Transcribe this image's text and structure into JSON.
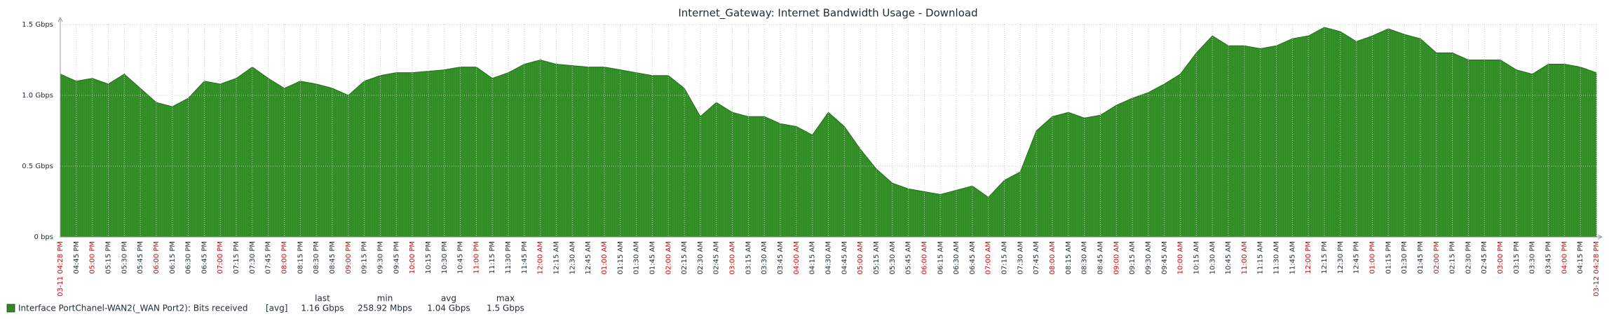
{
  "chart_data": {
    "type": "area",
    "title": "Internet_Gateway: Internet Bandwidth Usage - Download",
    "categories": [
      "03-11 04:28 PM",
      "04:45 PM",
      "05:00 PM",
      "05:15 PM",
      "05:30 PM",
      "05:45 PM",
      "06:00 PM",
      "06:15 PM",
      "06:30 PM",
      "06:45 PM",
      "07:00 PM",
      "07:15 PM",
      "07:30 PM",
      "07:45 PM",
      "08:00 PM",
      "08:15 PM",
      "08:30 PM",
      "08:45 PM",
      "09:00 PM",
      "09:15 PM",
      "09:30 PM",
      "09:45 PM",
      "10:00 PM",
      "10:15 PM",
      "10:30 PM",
      "10:45 PM",
      "11:00 PM",
      "11:15 PM",
      "11:30 PM",
      "11:45 PM",
      "12:00 AM",
      "12:15 AM",
      "12:30 AM",
      "12:45 AM",
      "01:00 AM",
      "01:15 AM",
      "01:30 AM",
      "01:45 AM",
      "02:00 AM",
      "02:15 AM",
      "02:30 AM",
      "02:45 AM",
      "03:00 AM",
      "03:15 AM",
      "03:30 AM",
      "03:45 AM",
      "04:00 AM",
      "04:15 AM",
      "04:30 AM",
      "04:45 AM",
      "05:00 AM",
      "05:15 AM",
      "05:30 AM",
      "05:45 AM",
      "06:00 AM",
      "06:15 AM",
      "06:30 AM",
      "06:45 AM",
      "07:00 AM",
      "07:15 AM",
      "07:30 AM",
      "07:45 AM",
      "08:00 AM",
      "08:15 AM",
      "08:30 AM",
      "08:45 AM",
      "09:00 AM",
      "09:15 AM",
      "09:30 AM",
      "09:45 AM",
      "10:00 AM",
      "10:15 AM",
      "10:30 AM",
      "10:45 AM",
      "11:00 AM",
      "11:15 AM",
      "11:30 AM",
      "11:45 AM",
      "12:00 PM",
      "12:15 PM",
      "12:30 PM",
      "12:45 PM",
      "01:00 PM",
      "01:15 PM",
      "01:30 PM",
      "01:45 PM",
      "02:00 PM",
      "02:15 PM",
      "02:30 PM",
      "02:45 PM",
      "03:00 PM",
      "03:15 PM",
      "03:30 PM",
      "03:45 PM",
      "04:00 PM",
      "04:15 PM",
      "03-12 04:28 PM"
    ],
    "series": [
      {
        "name": "Interface PortChanel-WAN2(_WAN Port2): Bits received",
        "color": "#2e8b22",
        "values": [
          1.15,
          1.1,
          1.12,
          1.08,
          1.15,
          1.05,
          0.95,
          0.92,
          0.98,
          1.1,
          1.08,
          1.12,
          1.2,
          1.12,
          1.05,
          1.1,
          1.08,
          1.05,
          1.0,
          1.1,
          1.14,
          1.16,
          1.16,
          1.17,
          1.18,
          1.2,
          1.2,
          1.12,
          1.16,
          1.22,
          1.25,
          1.22,
          1.21,
          1.2,
          1.2,
          1.18,
          1.16,
          1.14,
          1.14,
          1.05,
          0.85,
          0.95,
          0.88,
          0.85,
          0.85,
          0.8,
          0.78,
          0.72,
          0.88,
          0.78,
          0.62,
          0.48,
          0.38,
          0.34,
          0.32,
          0.3,
          0.33,
          0.36,
          0.28,
          0.4,
          0.46,
          0.75,
          0.85,
          0.88,
          0.84,
          0.86,
          0.93,
          0.98,
          1.02,
          1.08,
          1.15,
          1.3,
          1.42,
          1.35,
          1.35,
          1.33,
          1.35,
          1.4,
          1.42,
          1.48,
          1.45,
          1.38,
          1.42,
          1.47,
          1.43,
          1.4,
          1.3,
          1.3,
          1.25,
          1.25,
          1.25,
          1.18,
          1.15,
          1.22,
          1.22,
          1.2,
          1.16
        ]
      }
    ],
    "ylim": [
      0,
      1.5
    ],
    "yticks": [
      {
        "value": 0,
        "label": "0 bps"
      },
      {
        "value": 0.5,
        "label": "0.5 Gbps"
      },
      {
        "value": 1,
        "label": "1.0 Gbps"
      },
      {
        "value": 1.5,
        "label": "1.5 Gbps"
      }
    ],
    "grid": true,
    "legend": {
      "function": "[avg]",
      "headers": [
        "last",
        "min",
        "avg",
        "max"
      ],
      "stats": [
        "1.16 Gbps",
        "258.92 Mbps",
        "1.04 Gbps",
        "1.5 Gbps"
      ]
    }
  }
}
